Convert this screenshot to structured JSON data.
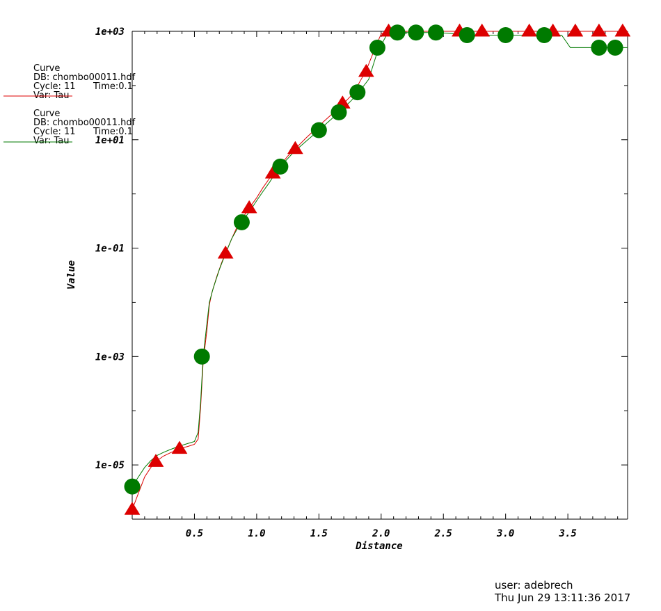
{
  "chart_data": {
    "type": "line",
    "xlabel": "Distance",
    "ylabel": "Value",
    "xlim": [
      0.0,
      3.98
    ],
    "ylim": [
      1e-06,
      1000
    ],
    "yscale": "log",
    "grid": false,
    "x_ticks": [
      {
        "value": 0.5,
        "label": "0.5"
      },
      {
        "value": 1.0,
        "label": "1.0"
      },
      {
        "value": 1.5,
        "label": "1.5"
      },
      {
        "value": 2.0,
        "label": "2.0"
      },
      {
        "value": 2.5,
        "label": "2.5"
      },
      {
        "value": 3.0,
        "label": "3.0"
      },
      {
        "value": 3.5,
        "label": "3.5"
      }
    ],
    "y_ticks": [
      {
        "value": 1e-05,
        "label": "1e-05"
      },
      {
        "value": 0.001,
        "label": "1e-03"
      },
      {
        "value": 0.1,
        "label": "1e-01"
      },
      {
        "value": 10,
        "label": "1e+01"
      },
      {
        "value": 1000,
        "label": "1e+03"
      }
    ],
    "series": [
      {
        "color": "#dd0000",
        "marker": "triangle",
        "x": [
          0.0,
          0.05,
          0.1,
          0.15,
          0.19,
          0.25,
          0.3,
          0.35,
          0.38,
          0.45,
          0.5,
          0.53,
          0.55,
          0.57,
          0.6,
          0.62,
          0.64,
          0.68,
          0.72,
          0.75,
          0.8,
          0.85,
          0.9,
          0.94,
          1.0,
          1.05,
          1.1,
          1.13,
          1.2,
          1.25,
          1.31,
          1.4,
          1.5,
          1.6,
          1.7,
          1.75,
          1.8,
          1.88,
          1.95,
          2.0,
          2.05,
          2.1,
          2.3,
          2.5,
          2.65,
          2.8,
          3.0,
          3.2,
          3.4,
          3.56,
          3.7,
          3.75,
          3.9,
          3.98
        ],
        "y": [
          1.5e-06,
          3e-06,
          6e-06,
          9e-06,
          1.15e-05,
          1.45e-05,
          1.65e-05,
          1.85e-05,
          2e-05,
          2.2e-05,
          2.4e-05,
          3e-05,
          0.00012,
          0.0008,
          0.003,
          0.009,
          0.015,
          0.03,
          0.055,
          0.08,
          0.15,
          0.27,
          0.4,
          0.55,
          0.85,
          1.3,
          1.9,
          2.4,
          3.6,
          5.0,
          6.8,
          11,
          18,
          29,
          47,
          62,
          90,
          190,
          480,
          900,
          1000,
          1000,
          1000,
          1000,
          1000,
          1000,
          1000,
          1000,
          1000,
          1000,
          1000,
          1000,
          1000,
          1000
        ],
        "marker_x": [
          0.0,
          0.19,
          0.38,
          0.75,
          0.94,
          1.13,
          1.31,
          1.69,
          1.88,
          2.06,
          2.63,
          2.81,
          3.19,
          3.38,
          3.56,
          3.75,
          3.94
        ],
        "marker_y": [
          1.5e-06,
          1.15e-05,
          2e-05,
          0.08,
          0.55,
          2.4,
          6.8,
          47,
          180,
          1000,
          1000,
          1000,
          1000,
          1000,
          1000,
          1000,
          1000
        ]
      },
      {
        "color": "#007a00",
        "marker": "circle",
        "x": [
          0.0,
          0.05,
          0.1,
          0.15,
          0.2,
          0.25,
          0.3,
          0.35,
          0.4,
          0.45,
          0.5,
          0.53,
          0.55,
          0.57,
          0.6,
          0.62,
          0.65,
          0.7,
          0.75,
          0.8,
          0.85,
          0.88,
          0.95,
          1.0,
          1.05,
          1.1,
          1.15,
          1.19,
          1.25,
          1.3,
          1.4,
          1.5,
          1.6,
          1.66,
          1.75,
          1.81,
          1.9,
          1.97,
          2.05,
          2.13,
          2.28,
          2.44,
          2.6,
          2.69,
          2.8,
          3.0,
          3.2,
          3.31,
          3.45,
          3.52,
          3.6,
          3.75,
          3.88,
          3.98
        ],
        "y": [
          4e-06,
          6e-06,
          9e-06,
          1.2e-05,
          1.5e-05,
          1.7e-05,
          1.9e-05,
          2.1e-05,
          2.3e-05,
          2.5e-05,
          2.7e-05,
          4e-05,
          0.00015,
          0.001,
          0.004,
          0.01,
          0.018,
          0.04,
          0.08,
          0.15,
          0.24,
          0.3,
          0.5,
          0.75,
          1.1,
          1.6,
          2.4,
          3.2,
          4.5,
          6.0,
          9.5,
          15,
          24,
          32,
          50,
          70,
          130,
          420,
          900,
          950,
          950,
          950,
          900,
          850,
          850,
          850,
          850,
          850,
          850,
          500,
          500,
          500,
          500,
          500
        ],
        "marker_x": [
          0.0,
          0.56,
          0.88,
          1.19,
          1.5,
          1.66,
          1.81,
          1.97,
          2.13,
          2.28,
          2.44,
          2.69,
          3.0,
          3.31,
          3.75,
          3.88
        ],
        "marker_y": [
          4e-06,
          0.001,
          0.3,
          3.2,
          15,
          32,
          75,
          500,
          950,
          950,
          950,
          850,
          850,
          850,
          500,
          500
        ]
      }
    ],
    "legend": [
      {
        "title": "Curve",
        "db": "DB: chombo00011.hdf",
        "cycle": "Cycle: 11",
        "time": "Time:0.1",
        "var": "Var: Tau",
        "color": "#dd0000"
      },
      {
        "title": "Curve",
        "db": "DB: chombo00011.hdf",
        "cycle": "Cycle: 11",
        "time": "Time:0.1",
        "var": "Var: Tau",
        "color": "#007a00"
      }
    ]
  },
  "footer": {
    "user": "user: adebrech",
    "date": "Thu Jun 29 13:11:36 2017"
  }
}
